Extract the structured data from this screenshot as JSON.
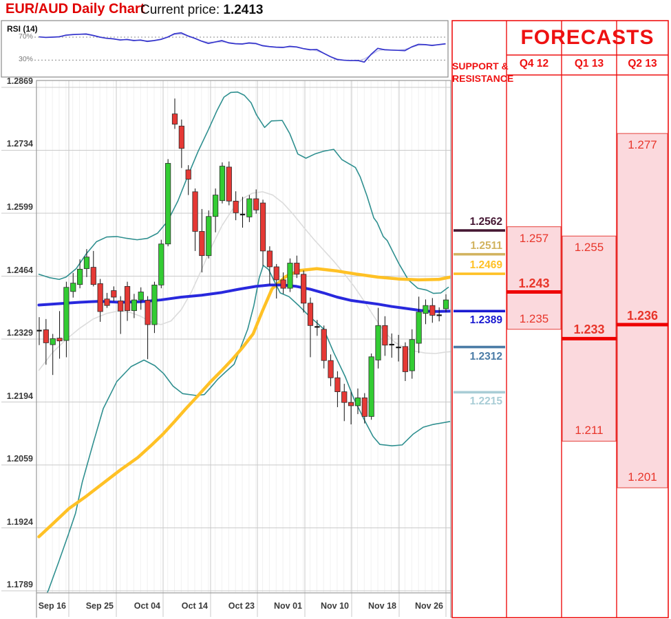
{
  "header": {
    "title": "EUR/AUD Daily Chart",
    "current_price_label": "Current price:",
    "current_price": "1.2413"
  },
  "rsi_panel": {
    "label": "RSI (14)",
    "upper_level_label": "70%",
    "lower_level_label": "30%",
    "line_color": "#3434cc"
  },
  "support_resistance": {
    "header_line1": "SUPPORT &",
    "header_line2": "RESISTANCE",
    "levels": [
      {
        "value": "1.2562",
        "color": "#451733",
        "side": "above"
      },
      {
        "value": "1.2511",
        "color": "#d2b35f",
        "side": "above"
      },
      {
        "value": "1.2469",
        "color": "#ffc125",
        "side": "above"
      },
      {
        "value": "1.2389",
        "color": "#1a1ad1",
        "side": "below"
      },
      {
        "value": "1.2312",
        "color": "#4a7ba6",
        "side": "below"
      },
      {
        "value": "1.2215",
        "color": "#a9cdd6",
        "side": "below"
      }
    ]
  },
  "forecasts": {
    "title": "FORECASTS",
    "accent_color": "#ee1111",
    "range_fill": "#fbd9dd",
    "columns": [
      {
        "label": "Q4 12",
        "high": "1.257",
        "pivot": "1.243",
        "low": "1.235"
      },
      {
        "label": "Q1 13",
        "high": "1.255",
        "pivot": "1.233",
        "low": "1.211"
      },
      {
        "label": "Q2 13",
        "high": "1.277",
        "pivot": "1.236",
        "low": "1.201"
      }
    ]
  },
  "chart_data": {
    "type": "candlestick",
    "title": "EUR/AUD Daily Chart",
    "ylim": [
      1.1789,
      1.2869
    ],
    "y_ticks": [
      "1.2869",
      "1.2734",
      "1.2599",
      "1.2464",
      "1.2329",
      "1.2194",
      "1.2059",
      "1.1924",
      "1.1789"
    ],
    "x_labels": [
      "Sep 16",
      "Sep 25",
      "Oct 04",
      "Oct 14",
      "Oct 23",
      "Nov 01",
      "Nov 10",
      "Nov 18",
      "Nov 26"
    ],
    "candles_ohlc": [
      [
        1.2348,
        1.2376,
        1.2316,
        1.2345,
        1
      ],
      [
        1.2349,
        1.2372,
        1.2274,
        1.2321
      ],
      [
        1.2317,
        1.234,
        1.2252,
        1.233
      ],
      [
        1.2331,
        1.2389,
        1.2287,
        1.2325
      ],
      [
        1.2326,
        1.2452,
        1.229,
        1.244
      ],
      [
        1.2431,
        1.2471,
        1.2418,
        1.2449
      ],
      [
        1.2446,
        1.25,
        1.2438,
        1.2479
      ],
      [
        1.248,
        1.2522,
        1.2462,
        1.2505
      ],
      [
        1.2483,
        1.2518,
        1.2442,
        1.2446
      ],
      [
        1.2448,
        1.2458,
        1.2366,
        1.2388
      ],
      [
        1.2415,
        1.2428,
        1.2396,
        1.2401
      ],
      [
        1.2433,
        1.2442,
        1.241,
        1.2419
      ],
      [
        1.2411,
        1.2421,
        1.234,
        1.2389
      ],
      [
        1.2442,
        1.2452,
        1.2368,
        1.239
      ],
      [
        1.239,
        1.2426,
        1.2374,
        1.2413
      ],
      [
        1.2413,
        1.244,
        1.2392,
        1.243
      ],
      [
        1.2412,
        1.2421,
        1.2286,
        1.236
      ],
      [
        1.236,
        1.2452,
        1.2342,
        1.2445
      ],
      [
        1.2445,
        1.2542,
        1.2438,
        1.2533
      ],
      [
        1.2533,
        1.2715,
        1.2528,
        1.2706
      ],
      [
        1.2812,
        1.2845,
        1.278,
        1.279
      ],
      [
        1.2786,
        1.28,
        1.2696,
        1.2738
      ],
      [
        1.2692,
        1.2702,
        1.2638,
        1.2672
      ],
      [
        1.2645,
        1.2652,
        1.2518,
        1.256
      ],
      [
        1.256,
        1.2608,
        1.2472,
        1.2508
      ],
      [
        1.2508,
        1.2605,
        1.2502,
        1.2592
      ],
      [
        1.2592,
        1.2652,
        1.2558,
        1.2638
      ],
      [
        1.2626,
        1.2708,
        1.262,
        1.27
      ],
      [
        1.2698,
        1.271,
        1.2616,
        1.2625
      ],
      [
        1.2625,
        1.2646,
        1.2584,
        1.26
      ],
      [
        1.2597,
        1.2634,
        1.2568,
        1.2591,
        1
      ],
      [
        1.2591,
        1.2638,
        1.258,
        1.263
      ],
      [
        1.263,
        1.265,
        1.2598,
        1.2606
      ],
      [
        1.2621,
        1.2628,
        1.2486,
        1.2518
      ],
      [
        1.2518,
        1.2528,
        1.2446,
        1.2484
      ],
      [
        1.2484,
        1.249,
        1.2416,
        1.2456
      ],
      [
        1.2456,
        1.2472,
        1.2426,
        1.2438
      ],
      [
        1.2438,
        1.2502,
        1.243,
        1.2492
      ],
      [
        1.2492,
        1.2508,
        1.246,
        1.2468
      ],
      [
        1.2468,
        1.2476,
        1.2386,
        1.2406
      ],
      [
        1.2406,
        1.2418,
        1.229,
        1.2358
      ],
      [
        1.2356,
        1.237,
        1.2336,
        1.2351,
        1
      ],
      [
        1.235,
        1.2358,
        1.2266,
        1.2283
      ],
      [
        1.2283,
        1.2296,
        1.2228,
        1.2246
      ],
      [
        1.2246,
        1.226,
        1.2183,
        1.2216
      ],
      [
        1.2216,
        1.2233,
        1.2153,
        1.2193
      ],
      [
        1.2193,
        1.2216,
        1.2146,
        1.2186
      ],
      [
        1.2186,
        1.2223,
        1.2168,
        1.2203
      ],
      [
        1.2203,
        1.2213,
        1.2148,
        1.2163
      ],
      [
        1.2163,
        1.2298,
        1.2156,
        1.2291
      ],
      [
        1.2284,
        1.2396,
        1.2266,
        1.2358
      ],
      [
        1.2358,
        1.2378,
        1.2293,
        1.2316
      ],
      [
        1.2318,
        1.2341,
        1.2289,
        1.2313,
        1
      ],
      [
        1.2312,
        1.2338,
        1.2281,
        1.2308,
        1
      ],
      [
        1.2313,
        1.2322,
        1.2239,
        1.2259
      ],
      [
        1.2261,
        1.235,
        1.2244,
        1.2328
      ],
      [
        1.232,
        1.242,
        1.2299,
        1.2387
      ],
      [
        1.2384,
        1.2414,
        1.2361,
        1.2401
      ],
      [
        1.2401,
        1.2417,
        1.2364,
        1.238
      ],
      [
        1.2379,
        1.2397,
        1.2367,
        1.2381,
        1
      ],
      [
        1.2394,
        1.2425,
        1.2387,
        1.2413
      ]
    ],
    "up_color": "#33cc33",
    "down_color": "#e53935",
    "overlays": [
      {
        "name": "bollinger-upper",
        "color": "#2e8f8f",
        "width": 1.6,
        "points": [
          [
            0,
            1.2468
          ],
          [
            1.5,
            1.2461
          ],
          [
            3,
            1.2457
          ],
          [
            4,
            1.2462
          ],
          [
            5.5,
            1.248
          ],
          [
            7,
            1.2512
          ],
          [
            8.5,
            1.2538
          ],
          [
            10,
            1.2548
          ],
          [
            11.5,
            1.2549
          ],
          [
            13,
            1.2545
          ],
          [
            14.5,
            1.2542
          ],
          [
            16,
            1.2545
          ],
          [
            17.5,
            1.2556
          ],
          [
            19,
            1.2582
          ],
          [
            20.5,
            1.2625
          ],
          [
            22,
            1.268
          ],
          [
            23.5,
            1.2732
          ],
          [
            25,
            1.2778
          ],
          [
            26.3,
            1.282
          ],
          [
            27.3,
            1.2848
          ],
          [
            28.3,
            1.2858
          ],
          [
            29.3,
            1.2859
          ],
          [
            30.3,
            1.2852
          ],
          [
            31.3,
            1.2836
          ],
          [
            32.1,
            1.281
          ],
          [
            33.3,
            1.2783
          ],
          [
            34.3,
            1.2797
          ],
          [
            35.9,
            1.2798
          ],
          [
            37,
            1.277
          ],
          [
            38.2,
            1.2726
          ],
          [
            39.4,
            1.2717
          ],
          [
            40.7,
            1.2726
          ],
          [
            42,
            1.2732
          ],
          [
            43.5,
            1.2736
          ],
          [
            44.7,
            1.2714
          ],
          [
            46.7,
            1.2697
          ],
          [
            47.4,
            1.2677
          ],
          [
            48.4,
            1.2636
          ],
          [
            49.4,
            1.2589
          ],
          [
            49.9,
            1.2579
          ],
          [
            50.8,
            1.2549
          ],
          [
            51.4,
            1.254
          ],
          [
            52.4,
            1.2511
          ],
          [
            53.1,
            1.2491
          ],
          [
            54.5,
            1.2456
          ],
          [
            55.9,
            1.2438
          ],
          [
            57.2,
            1.2434
          ],
          [
            58.2,
            1.2427
          ],
          [
            59.3,
            1.2428
          ],
          [
            60.4,
            1.244
          ]
        ]
      },
      {
        "name": "bollinger-lower",
        "color": "#2e8f8f",
        "width": 1.6,
        "points": [
          [
            0,
            1.1748
          ],
          [
            1.4,
            1.179
          ],
          [
            2.9,
            1.185
          ],
          [
            4.4,
            1.1912
          ],
          [
            5.4,
            1.1955
          ],
          [
            6.4,
            1.2022
          ],
          [
            8,
            1.2105
          ],
          [
            9.5,
            1.218
          ],
          [
            11.5,
            1.2238
          ],
          [
            13.6,
            1.227
          ],
          [
            15.5,
            1.2284
          ],
          [
            17.1,
            1.2272
          ],
          [
            18.4,
            1.2255
          ],
          [
            19.8,
            1.2228
          ],
          [
            21.2,
            1.2212
          ],
          [
            23.2,
            1.2208
          ],
          [
            24.4,
            1.221
          ],
          [
            25.4,
            1.2226
          ],
          [
            26.4,
            1.2243
          ],
          [
            27.5,
            1.2258
          ],
          [
            28.8,
            1.2275
          ],
          [
            29.8,
            1.2312
          ],
          [
            30.8,
            1.235
          ],
          [
            31.7,
            1.24
          ],
          [
            32.5,
            1.246
          ],
          [
            33.1,
            1.2487
          ],
          [
            33.9,
            1.2478
          ],
          [
            34.9,
            1.2448
          ],
          [
            35.6,
            1.2428
          ],
          [
            36.9,
            1.242
          ],
          [
            38.4,
            1.24
          ],
          [
            39.9,
            1.2378
          ],
          [
            42,
            1.2351
          ],
          [
            43.5,
            1.23
          ],
          [
            45.2,
            1.2248
          ],
          [
            46.5,
            1.22
          ],
          [
            48.1,
            1.2153
          ],
          [
            49.3,
            1.212
          ],
          [
            50.3,
            1.2103
          ],
          [
            52.1,
            1.21
          ],
          [
            53.6,
            1.2102
          ],
          [
            55.2,
            1.2125
          ],
          [
            56.7,
            1.214
          ],
          [
            58.2,
            1.2146
          ],
          [
            60.6,
            1.2152
          ]
        ]
      },
      {
        "name": "sma20-gray",
        "color": "#dcdcdc",
        "width": 1.6,
        "points": [
          [
            0,
            1.2262
          ],
          [
            2,
            1.23
          ],
          [
            4,
            1.2328
          ],
          [
            6,
            1.2352
          ],
          [
            8,
            1.2372
          ],
          [
            10,
            1.2384
          ],
          [
            12,
            1.239
          ],
          [
            13.5,
            1.2386
          ],
          [
            15,
            1.2378
          ],
          [
            16.5,
            1.2366
          ],
          [
            18,
            1.236
          ],
          [
            19.5,
            1.2368
          ],
          [
            21,
            1.2392
          ],
          [
            22.5,
            1.243
          ],
          [
            24,
            1.2478
          ],
          [
            25.5,
            1.2528
          ],
          [
            27,
            1.2572
          ],
          [
            28.5,
            1.2606
          ],
          [
            30,
            1.263
          ],
          [
            31.5,
            1.2642
          ],
          [
            33,
            1.2645
          ],
          [
            34.5,
            1.2638
          ],
          [
            36,
            1.2621
          ],
          [
            37.5,
            1.2597
          ],
          [
            39,
            1.257
          ],
          [
            40.5,
            1.2544
          ],
          [
            42,
            1.252
          ],
          [
            43.5,
            1.2496
          ],
          [
            45,
            1.247
          ],
          [
            46.5,
            1.2442
          ],
          [
            48,
            1.241
          ],
          [
            49.5,
            1.2376
          ],
          [
            51,
            1.2344
          ],
          [
            52.5,
            1.2322
          ],
          [
            54,
            1.231
          ],
          [
            55.5,
            1.2303
          ],
          [
            57,
            1.2299
          ],
          [
            58.5,
            1.2298
          ],
          [
            60,
            1.2301
          ],
          [
            60.7,
            1.2302
          ]
        ]
      },
      {
        "name": "ma-yellow",
        "color": "#ffc125",
        "width": 4.5,
        "points": [
          [
            0,
            1.1905
          ],
          [
            2,
            1.1932
          ],
          [
            4.4,
            1.1965
          ],
          [
            7,
            1.1992
          ],
          [
            9.5,
            1.202
          ],
          [
            12,
            1.2048
          ],
          [
            14.6,
            1.2075
          ],
          [
            16.5,
            1.21
          ],
          [
            18.3,
            1.2125
          ],
          [
            20,
            1.2152
          ],
          [
            21.7,
            1.218
          ],
          [
            23.5,
            1.2208
          ],
          [
            25.3,
            1.2237
          ],
          [
            27,
            1.2262
          ],
          [
            28.5,
            1.2285
          ],
          [
            30,
            1.231
          ],
          [
            31.6,
            1.234
          ],
          [
            33,
            1.239
          ],
          [
            34.4,
            1.2437
          ],
          [
            36.4,
            1.2463
          ],
          [
            38.4,
            1.2476
          ],
          [
            41,
            1.248
          ],
          [
            44,
            1.2475
          ],
          [
            47,
            1.2468
          ],
          [
            50,
            1.2462
          ],
          [
            53,
            1.2458
          ],
          [
            56,
            1.2456
          ],
          [
            59,
            1.2457
          ],
          [
            60.7,
            1.2462
          ]
        ]
      },
      {
        "name": "ma-blue",
        "color": "#2828dd",
        "width": 4,
        "points": [
          [
            0,
            1.2402
          ],
          [
            3,
            1.2405
          ],
          [
            6,
            1.2408
          ],
          [
            9,
            1.241
          ],
          [
            12,
            1.2408
          ],
          [
            15,
            1.2409
          ],
          [
            18,
            1.2413
          ],
          [
            21,
            1.2419
          ],
          [
            24,
            1.2423
          ],
          [
            27,
            1.2429
          ],
          [
            29.5,
            1.2436
          ],
          [
            32,
            1.2442
          ],
          [
            34,
            1.2445
          ],
          [
            36,
            1.2445
          ],
          [
            38,
            1.2442
          ],
          [
            40,
            1.2436
          ],
          [
            42,
            1.2428
          ],
          [
            44,
            1.2419
          ],
          [
            46,
            1.2412
          ],
          [
            48,
            1.2408
          ],
          [
            50,
            1.2404
          ],
          [
            52,
            1.2399
          ],
          [
            54,
            1.2395
          ],
          [
            56,
            1.2391
          ],
          [
            58,
            1.2388
          ],
          [
            60.7,
            1.2389
          ]
        ]
      }
    ],
    "rsi": {
      "levels": [
        70,
        30
      ],
      "values": [
        70.5,
        69.5,
        70,
        70.5,
        73.5,
        74.5,
        75,
        75.5,
        73,
        70,
        68,
        67,
        65,
        66,
        64,
        65,
        62.5,
        64,
        66,
        70,
        76,
        77.5,
        72,
        68,
        63,
        59,
        61.5,
        64,
        60,
        58.5,
        58,
        60,
        59,
        55,
        53.5,
        52.5,
        52,
        54,
        53,
        50,
        48,
        48.5,
        42,
        36,
        31,
        29.8,
        29.2,
        29.5,
        26.5,
        40,
        50.5,
        48,
        47.5,
        47,
        46.5,
        53,
        57.5,
        57,
        55.5,
        57,
        58.5
      ]
    }
  }
}
